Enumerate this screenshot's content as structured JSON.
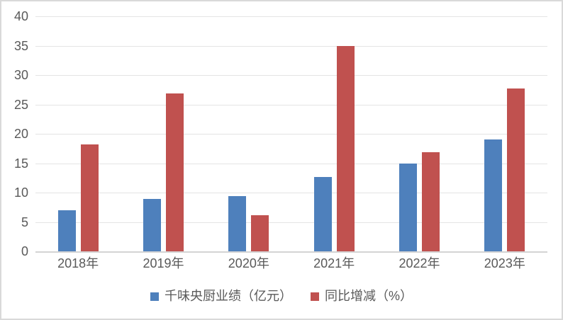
{
  "chart_data": {
    "type": "bar",
    "title": "",
    "xlabel": "",
    "ylabel": "",
    "categories": [
      "2018年",
      "2019年",
      "2020年",
      "2021年",
      "2022年",
      "2023年"
    ],
    "series": [
      {
        "name": "千味央厨业绩（亿元）",
        "color": "#4E80BC",
        "values": [
          7.0,
          8.9,
          9.4,
          12.7,
          14.9,
          19.0
        ]
      },
      {
        "name": "同比增减（%）",
        "color": "#C0514F",
        "values": [
          18.2,
          26.9,
          6.2,
          34.9,
          16.9,
          27.7
        ]
      }
    ],
    "ylim": [
      0,
      40
    ],
    "yticks": [
      0,
      5,
      10,
      15,
      20,
      25,
      30,
      35,
      40
    ],
    "grid": true,
    "legend_position": "bottom"
  },
  "colors": {
    "background": "#FFFFFF",
    "frame_border": "#D9D9D9",
    "gridline": "#E4E4E4",
    "zero_axis": "#D4D4D4",
    "text": "#595959",
    "series_blue": "#4E80BC",
    "series_red": "#C0514F"
  }
}
